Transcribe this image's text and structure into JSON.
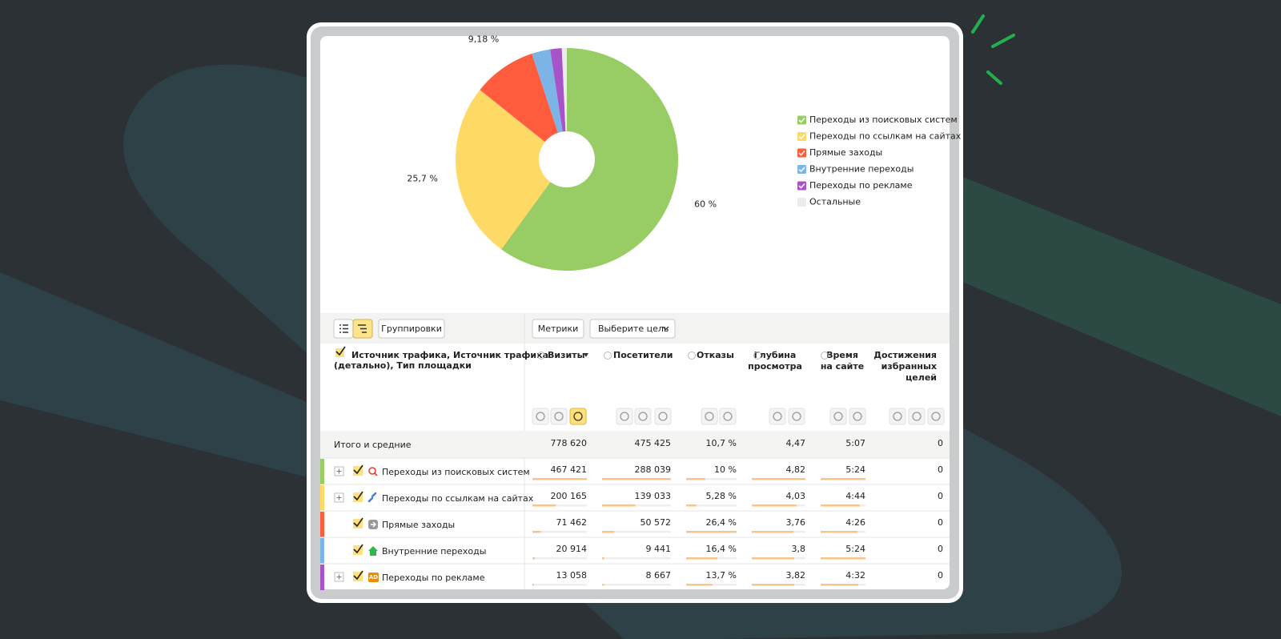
{
  "chart_data": {
    "type": "pie",
    "categories": [
      "Переходы из поисковых систем",
      "Переходы по ссылкам на сайтах",
      "Прямые заходы",
      "Внутренние переходы",
      "Переходы по рекламе",
      "Остальные"
    ],
    "values": [
      60,
      25.7,
      9.18,
      2.69,
      1.68,
      0.72
    ],
    "value_labels": [
      "60 %",
      "25,7 %",
      "9,18 %",
      null,
      null,
      null
    ],
    "colors": [
      "#98cc64",
      "#ffd965",
      "#ff5c3e",
      "#7cb4e8",
      "#a854c8",
      "#ebebeb"
    ]
  },
  "toolbar": {
    "groupings": "Группировки",
    "metrics": "Метрики",
    "goal": "Выберите цель"
  },
  "table": {
    "header": {
      "dimension": [
        "Источник трафика, Источник трафика",
        "(детально), Тип площадки"
      ],
      "columns": [
        [
          "Визиты"
        ],
        [
          "Посетители"
        ],
        [
          "Отказы"
        ],
        [
          "Глубина",
          "просмотра"
        ],
        [
          "Время",
          "на сайте"
        ],
        [
          "Достижения",
          "избранных",
          "целей"
        ]
      ]
    },
    "totals": {
      "label": "Итого и средние",
      "cells": [
        "778 620",
        "475 425",
        "10,7 %",
        "4,47",
        "5:07",
        "0"
      ]
    },
    "rows": [
      {
        "label": "Переходы из поисковых систем",
        "cells": [
          "467 421",
          "288 039",
          "10 %",
          "4,82",
          "5:24",
          "0"
        ]
      },
      {
        "label": "Переходы по ссылкам на сайтах",
        "cells": [
          "200 165",
          "139 033",
          "5,28 %",
          "4,03",
          "4:44",
          "0"
        ]
      },
      {
        "label": "Прямые заходы",
        "cells": [
          "71 462",
          "50 572",
          "26,4 %",
          "3,76",
          "4:26",
          "0"
        ]
      },
      {
        "label": "Внутренние переходы",
        "cells": [
          "20 914",
          "9 441",
          "16,4 %",
          "3,8",
          "5:24",
          "0"
        ]
      },
      {
        "label": "Переходы по рекламе",
        "badge": "AD",
        "cells": [
          "13 058",
          "8 667",
          "13,7 %",
          "3,82",
          "4:32",
          "0"
        ]
      }
    ]
  }
}
